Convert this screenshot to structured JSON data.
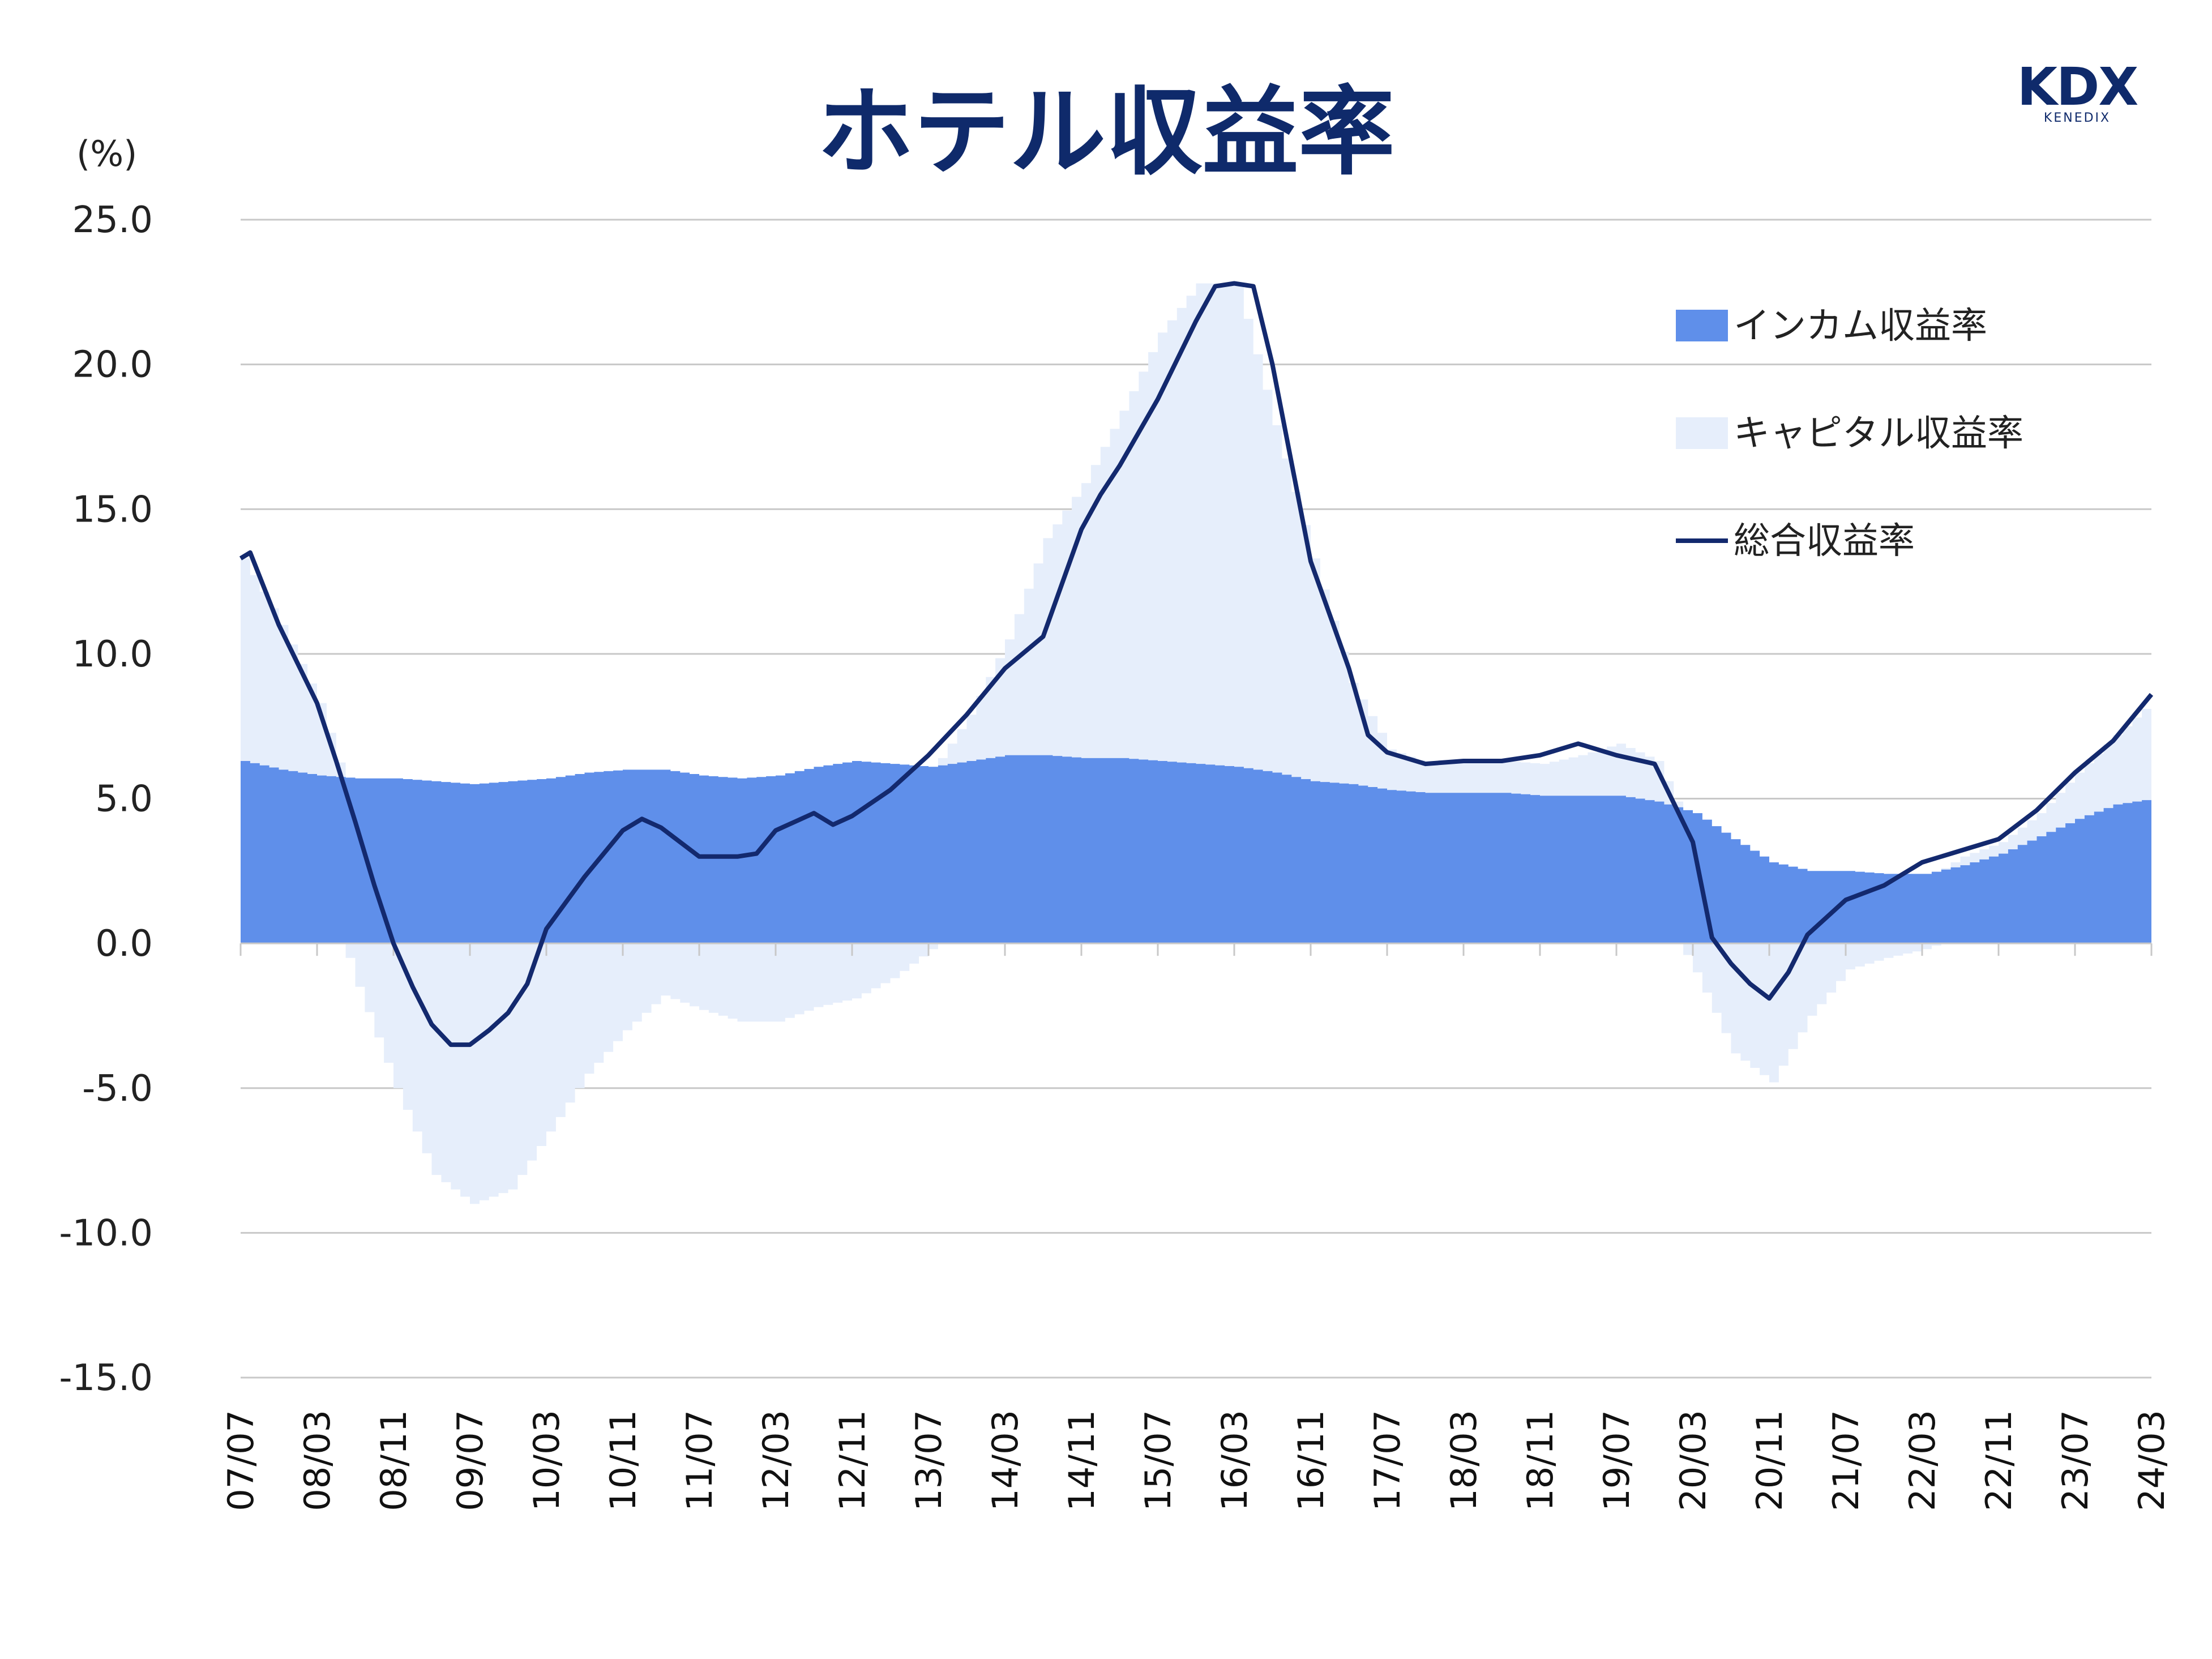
{
  "header": {
    "title": "ホテル収益率",
    "logo_main": "KDX",
    "logo_sub": "KENEDIX"
  },
  "colors": {
    "income": "#5f8fea",
    "capital": "#e6eefb",
    "total": "#13296e",
    "grid": "#c8c8c8",
    "title": "#0f2a6b"
  },
  "chart_data": {
    "type": "area",
    "ylabel": "(%)",
    "ylim": [
      -15,
      25
    ],
    "yticks": [
      "25.0",
      "20.0",
      "15.0",
      "10.0",
      "5.0",
      "0.0",
      "-5.0",
      "-10.0",
      "-15.0"
    ],
    "ytick_values": [
      25,
      20,
      15,
      10,
      5,
      0,
      -5,
      -10,
      -15
    ],
    "x_start": "2007-07",
    "x_end": "2024-03",
    "xticks": [
      "07/07",
      "08/03",
      "08/11",
      "09/07",
      "10/03",
      "10/11",
      "11/07",
      "12/03",
      "12/11",
      "13/07",
      "14/03",
      "14/11",
      "15/07",
      "16/03",
      "16/11",
      "17/07",
      "18/03",
      "18/11",
      "19/07",
      "20/03",
      "20/11",
      "21/07",
      "22/03",
      "22/11",
      "23/07",
      "24/03"
    ],
    "grid": true,
    "legend_position": "top-right",
    "series": [
      {
        "name": "インカム収益率",
        "type": "area",
        "points": [
          [
            "2007-07",
            6.3
          ],
          [
            "2007-11",
            6.0
          ],
          [
            "2008-03",
            5.8
          ],
          [
            "2008-07",
            5.7
          ],
          [
            "2008-11",
            5.7
          ],
          [
            "2009-03",
            5.6
          ],
          [
            "2009-07",
            5.5
          ],
          [
            "2009-11",
            5.6
          ],
          [
            "2010-03",
            5.7
          ],
          [
            "2010-07",
            5.9
          ],
          [
            "2010-11",
            6.0
          ],
          [
            "2011-03",
            6.0
          ],
          [
            "2011-07",
            5.8
          ],
          [
            "2011-11",
            5.7
          ],
          [
            "2012-03",
            5.8
          ],
          [
            "2012-07",
            6.1
          ],
          [
            "2012-11",
            6.3
          ],
          [
            "2013-03",
            6.2
          ],
          [
            "2013-07",
            6.1
          ],
          [
            "2013-11",
            6.3
          ],
          [
            "2014-03",
            6.5
          ],
          [
            "2014-07",
            6.5
          ],
          [
            "2014-11",
            6.4
          ],
          [
            "2015-03",
            6.4
          ],
          [
            "2015-07",
            6.3
          ],
          [
            "2015-11",
            6.2
          ],
          [
            "2016-03",
            6.1
          ],
          [
            "2016-07",
            5.9
          ],
          [
            "2016-11",
            5.6
          ],
          [
            "2017-03",
            5.5
          ],
          [
            "2017-07",
            5.3
          ],
          [
            "2017-11",
            5.2
          ],
          [
            "2018-03",
            5.2
          ],
          [
            "2018-07",
            5.2
          ],
          [
            "2018-11",
            5.1
          ],
          [
            "2019-03",
            5.1
          ],
          [
            "2019-07",
            5.1
          ],
          [
            "2019-11",
            4.9
          ],
          [
            "2020-03",
            4.5
          ],
          [
            "2020-07",
            3.6
          ],
          [
            "2020-11",
            2.8
          ],
          [
            "2021-03",
            2.5
          ],
          [
            "2021-07",
            2.5
          ],
          [
            "2021-11",
            2.4
          ],
          [
            "2022-03",
            2.4
          ],
          [
            "2022-07",
            2.7
          ],
          [
            "2022-11",
            3.1
          ],
          [
            "2023-03",
            3.7
          ],
          [
            "2023-07",
            4.3
          ],
          [
            "2023-11",
            4.8
          ],
          [
            "2024-03",
            5.0
          ]
        ]
      },
      {
        "name": "キャピタル収益率",
        "type": "area",
        "points": [
          [
            "2007-07",
            7.0
          ],
          [
            "2007-11",
            5.0
          ],
          [
            "2008-03",
            2.5
          ],
          [
            "2008-07",
            -1.5
          ],
          [
            "2008-11",
            -5.0
          ],
          [
            "2009-03",
            -8.0
          ],
          [
            "2009-07",
            -9.0
          ],
          [
            "2009-11",
            -8.5
          ],
          [
            "2010-03",
            -6.5
          ],
          [
            "2010-07",
            -4.5
          ],
          [
            "2010-11",
            -3.0
          ],
          [
            "2011-03",
            -1.8
          ],
          [
            "2011-07",
            -2.3
          ],
          [
            "2011-11",
            -2.7
          ],
          [
            "2012-03",
            -2.7
          ],
          [
            "2012-07",
            -2.2
          ],
          [
            "2012-11",
            -1.9
          ],
          [
            "2013-03",
            -1.2
          ],
          [
            "2013-07",
            -0.2
          ],
          [
            "2013-11",
            1.6
          ],
          [
            "2014-03",
            4.0
          ],
          [
            "2014-07",
            7.5
          ],
          [
            "2014-11",
            9.5
          ],
          [
            "2015-03",
            12.0
          ],
          [
            "2015-07",
            14.8
          ],
          [
            "2015-11",
            16.6
          ],
          [
            "2016-03",
            16.7
          ],
          [
            "2016-07",
            12.0
          ],
          [
            "2016-11",
            7.7
          ],
          [
            "2017-03",
            3.5
          ],
          [
            "2017-07",
            1.4
          ],
          [
            "2017-11",
            1.0
          ],
          [
            "2018-03",
            1.1
          ],
          [
            "2018-07",
            1.1
          ],
          [
            "2018-11",
            1.1
          ],
          [
            "2019-03",
            1.4
          ],
          [
            "2019-07",
            1.8
          ],
          [
            "2019-11",
            1.4
          ],
          [
            "2020-03",
            -1.0
          ],
          [
            "2020-07",
            -3.8
          ],
          [
            "2020-11",
            -4.8
          ],
          [
            "2021-03",
            -2.5
          ],
          [
            "2021-07",
            -0.9
          ],
          [
            "2021-11",
            -0.5
          ],
          [
            "2022-03",
            -0.2
          ],
          [
            "2022-07",
            0.3
          ],
          [
            "2022-11",
            0.4
          ],
          [
            "2023-03",
            0.8
          ],
          [
            "2023-07",
            1.6
          ],
          [
            "2023-11",
            2.4
          ],
          [
            "2024-03",
            3.4
          ]
        ]
      },
      {
        "name": "総合収益率",
        "type": "line",
        "points": [
          [
            "2007-07",
            13.3
          ],
          [
            "2007-08",
            13.5
          ],
          [
            "2007-11",
            11.0
          ],
          [
            "2008-03",
            8.3
          ],
          [
            "2008-05",
            6.3
          ],
          [
            "2008-07",
            4.2
          ],
          [
            "2008-09",
            2.0
          ],
          [
            "2008-11",
            0.0
          ],
          [
            "2009-01",
            -1.5
          ],
          [
            "2009-03",
            -2.8
          ],
          [
            "2009-05",
            -3.5
          ],
          [
            "2009-07",
            -3.5
          ],
          [
            "2009-09",
            -3.0
          ],
          [
            "2009-11",
            -2.4
          ],
          [
            "2010-01",
            -1.4
          ],
          [
            "2010-03",
            0.5
          ],
          [
            "2010-07",
            2.3
          ],
          [
            "2010-11",
            3.9
          ],
          [
            "2011-01",
            4.3
          ],
          [
            "2011-03",
            4.0
          ],
          [
            "2011-07",
            3.0
          ],
          [
            "2011-11",
            3.0
          ],
          [
            "2012-01",
            3.1
          ],
          [
            "2012-03",
            3.9
          ],
          [
            "2012-07",
            4.5
          ],
          [
            "2012-09",
            4.1
          ],
          [
            "2012-11",
            4.4
          ],
          [
            "2013-03",
            5.3
          ],
          [
            "2013-07",
            6.5
          ],
          [
            "2013-11",
            7.9
          ],
          [
            "2014-03",
            9.5
          ],
          [
            "2014-07",
            10.6
          ],
          [
            "2014-11",
            14.3
          ],
          [
            "2015-01",
            15.5
          ],
          [
            "2015-03",
            16.5
          ],
          [
            "2015-07",
            18.8
          ],
          [
            "2015-11",
            21.5
          ],
          [
            "2016-01",
            22.7
          ],
          [
            "2016-03",
            22.8
          ],
          [
            "2016-05",
            22.7
          ],
          [
            "2016-07",
            20.0
          ],
          [
            "2016-11",
            13.2
          ],
          [
            "2017-03",
            9.5
          ],
          [
            "2017-05",
            7.2
          ],
          [
            "2017-07",
            6.6
          ],
          [
            "2017-11",
            6.2
          ],
          [
            "2018-03",
            6.3
          ],
          [
            "2018-07",
            6.3
          ],
          [
            "2018-11",
            6.5
          ],
          [
            "2019-03",
            6.9
          ],
          [
            "2019-07",
            6.5
          ],
          [
            "2019-11",
            6.2
          ],
          [
            "2020-03",
            3.5
          ],
          [
            "2020-05",
            0.2
          ],
          [
            "2020-07",
            -0.7
          ],
          [
            "2020-09",
            -1.4
          ],
          [
            "2020-11",
            -1.9
          ],
          [
            "2021-01",
            -1.0
          ],
          [
            "2021-03",
            0.3
          ],
          [
            "2021-07",
            1.5
          ],
          [
            "2021-11",
            2.0
          ],
          [
            "2022-03",
            2.8
          ],
          [
            "2022-07",
            3.2
          ],
          [
            "2022-11",
            3.6
          ],
          [
            "2023-03",
            4.6
          ],
          [
            "2023-07",
            5.9
          ],
          [
            "2023-11",
            7.0
          ],
          [
            "2024-03",
            8.6
          ]
        ]
      }
    ]
  }
}
